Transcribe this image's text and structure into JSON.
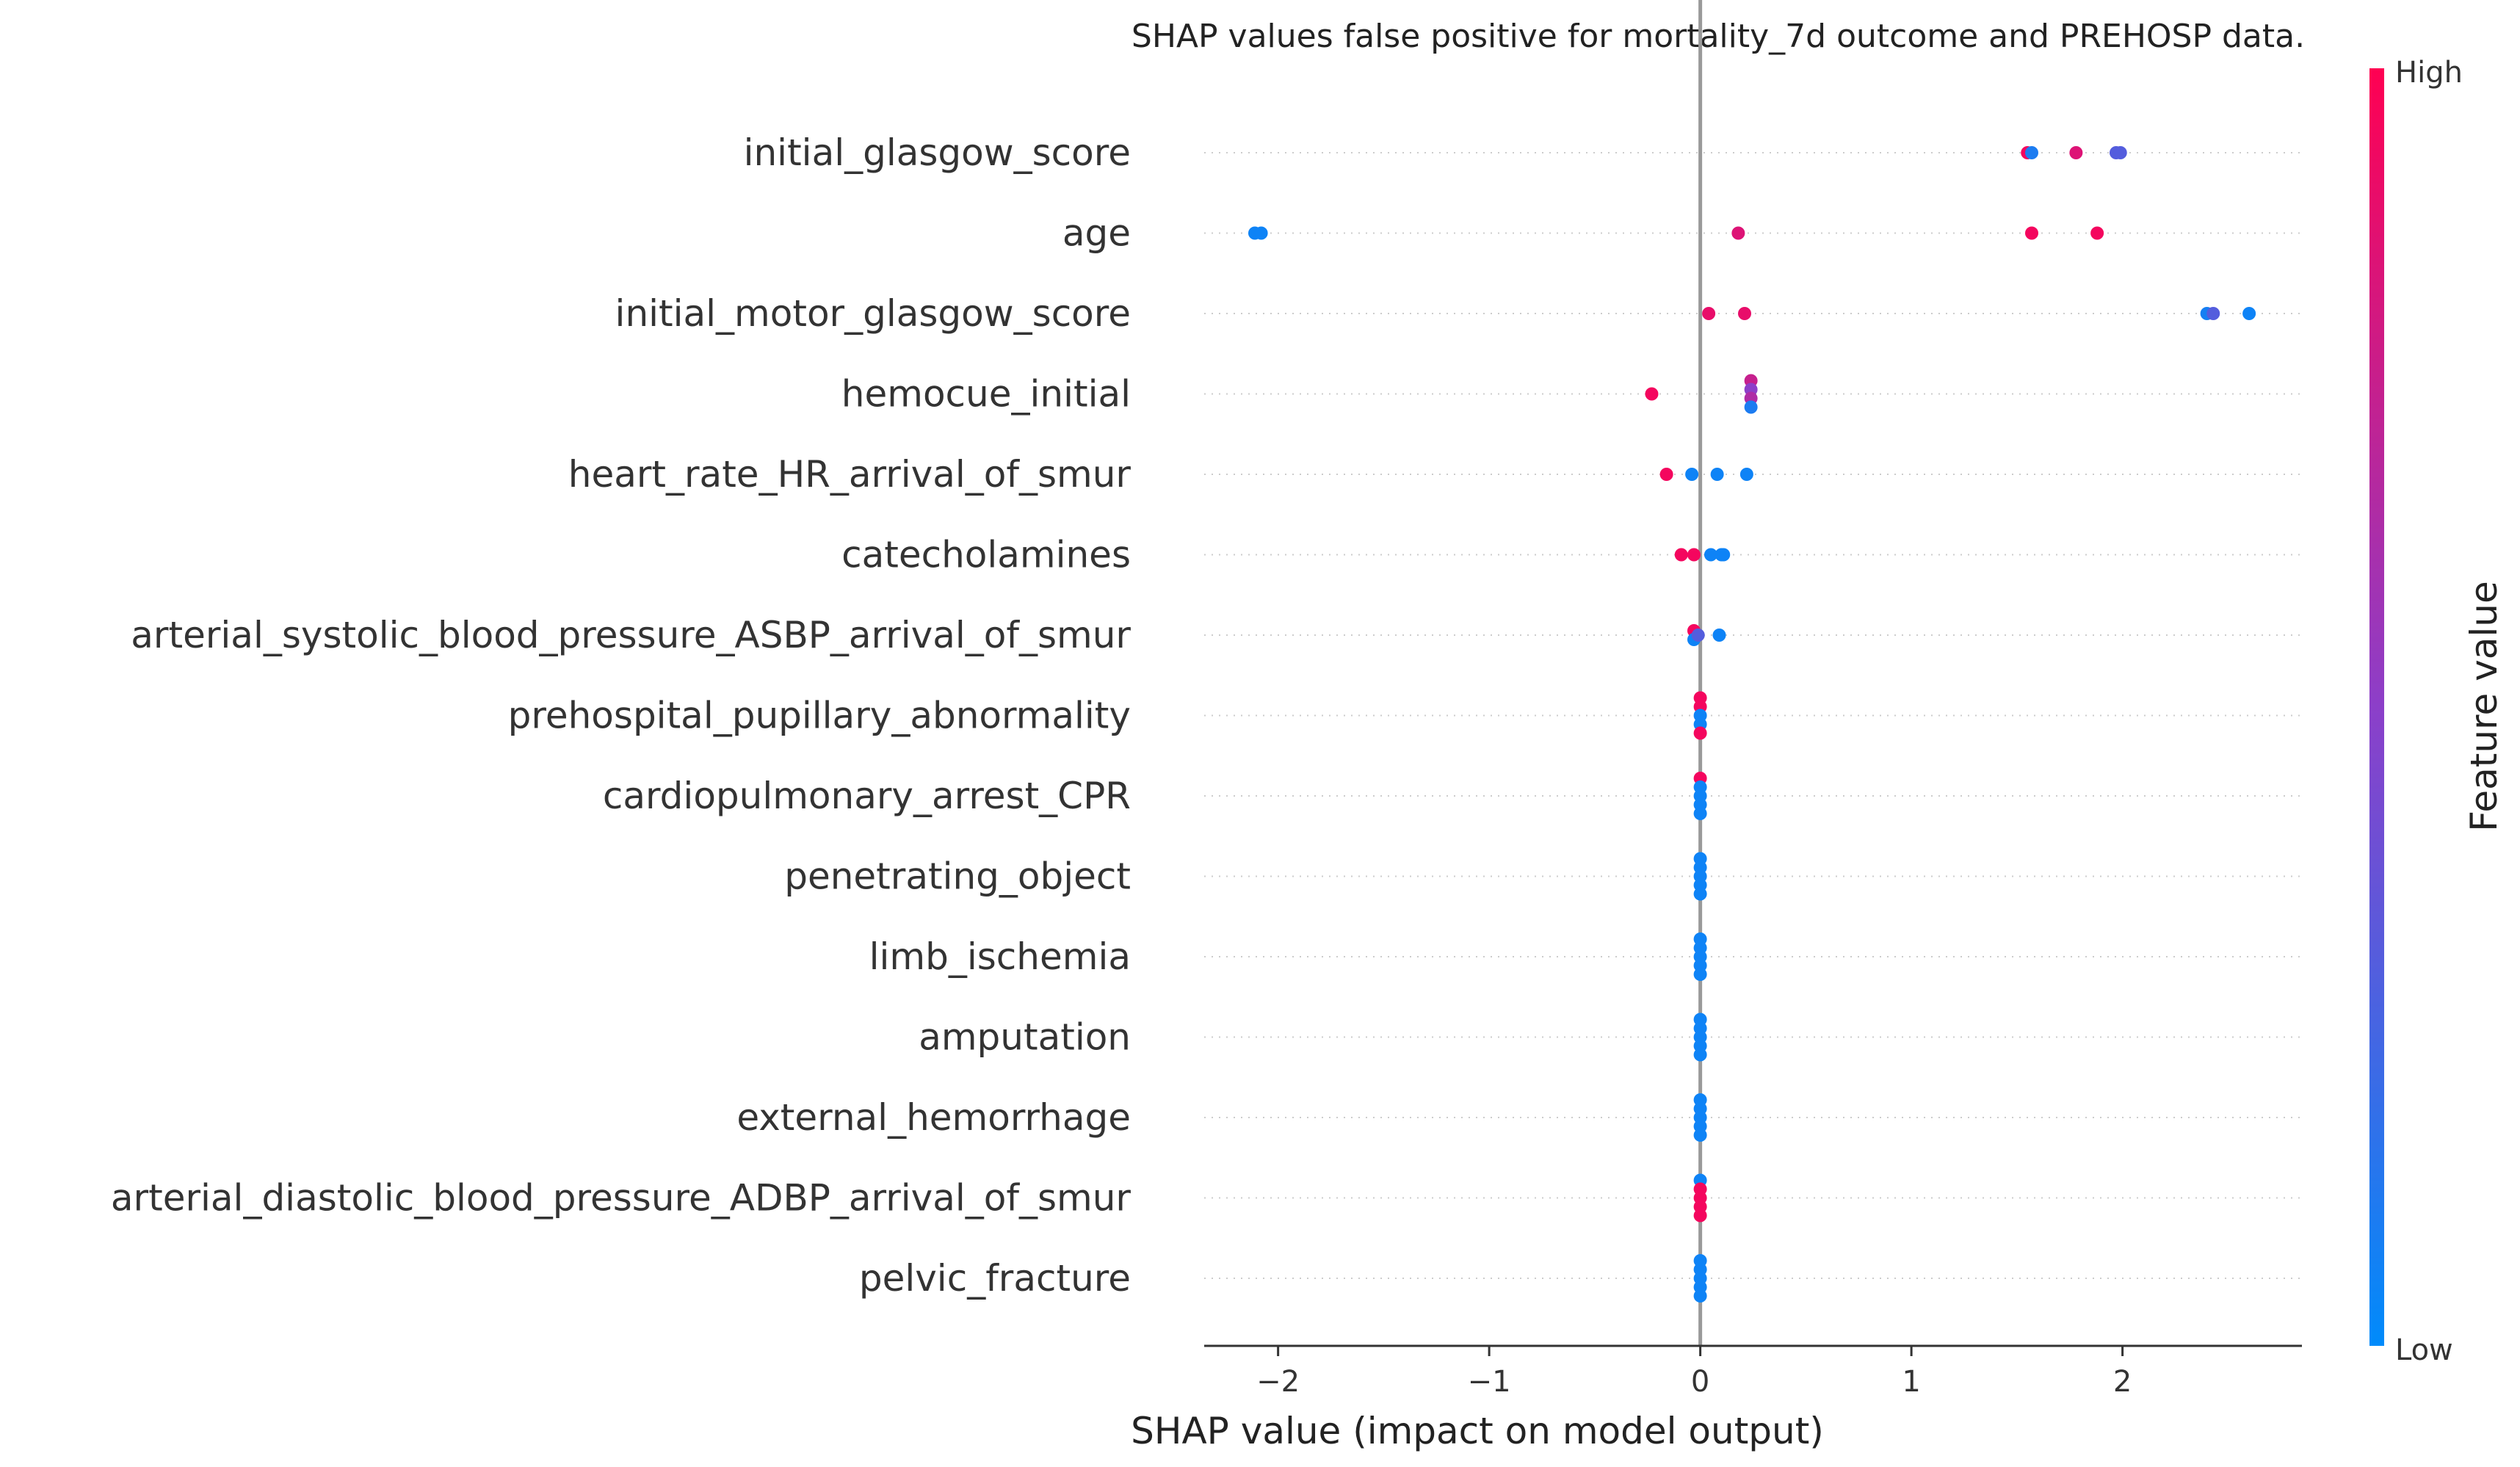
{
  "chart_data": {
    "type": "scatter",
    "title": "SHAP values false positive for mortality_7d outcome and PREHOSP data.",
    "xlabel": "SHAP value (impact on model output)",
    "ylabel": "",
    "xlim": [
      -2.35,
      2.85
    ],
    "xticks": [
      -2,
      -1,
      0,
      1,
      2
    ],
    "xtick_labels": [
      "−2",
      "−1",
      "0",
      "1",
      "2"
    ],
    "grid": false,
    "colorbar": {
      "label": "Feature value",
      "high_label": "High",
      "low_label": "Low",
      "low_color": "#008bfb",
      "high_color": "#ff0052"
    },
    "features": [
      {
        "name": "initial_glasgow_score",
        "points": [
          {
            "x": 1.55,
            "v": 0.95
          },
          {
            "x": 1.57,
            "v": 0.1
          },
          {
            "x": 1.78,
            "v": 0.85
          },
          {
            "x": 1.97,
            "v": 0.3
          },
          {
            "x": 1.99,
            "v": 0.3
          }
        ]
      },
      {
        "name": "age",
        "points": [
          {
            "x": -2.11,
            "v": 0.05
          },
          {
            "x": -2.08,
            "v": 0.05
          },
          {
            "x": 0.18,
            "v": 0.85
          },
          {
            "x": 1.57,
            "v": 0.95
          },
          {
            "x": 1.88,
            "v": 0.95
          }
        ]
      },
      {
        "name": "initial_motor_glasgow_score",
        "points": [
          {
            "x": 0.04,
            "v": 0.9
          },
          {
            "x": 0.21,
            "v": 0.9
          },
          {
            "x": 2.4,
            "v": 0.08
          },
          {
            "x": 2.43,
            "v": 0.3
          },
          {
            "x": 2.6,
            "v": 0.05
          }
        ]
      },
      {
        "name": "hemocue_initial",
        "points": [
          {
            "x": -0.23,
            "v": 0.95
          },
          {
            "x": 0.24,
            "v": 0.75
          },
          {
            "x": 0.24,
            "v": 0.5
          },
          {
            "x": 0.24,
            "v": 0.65
          },
          {
            "x": 0.24,
            "v": 0.1
          }
        ]
      },
      {
        "name": "heart_rate_HR_arrival_of_smur",
        "points": [
          {
            "x": -0.16,
            "v": 0.95
          },
          {
            "x": -0.04,
            "v": 0.05
          },
          {
            "x": 0.08,
            "v": 0.05
          },
          {
            "x": 0.22,
            "v": 0.05
          }
        ]
      },
      {
        "name": "catecholamines",
        "points": [
          {
            "x": -0.09,
            "v": 0.95
          },
          {
            "x": -0.03,
            "v": 0.95
          },
          {
            "x": 0.05,
            "v": 0.05
          },
          {
            "x": 0.1,
            "v": 0.05
          },
          {
            "x": 0.11,
            "v": 0.05
          }
        ]
      },
      {
        "name": "arterial_systolic_blood_pressure_ASBP_arrival_of_smur",
        "points": [
          {
            "x": -0.03,
            "v": 0.95
          },
          {
            "x": -0.03,
            "v": 0.05
          },
          {
            "x": -0.01,
            "v": 0.3
          },
          {
            "x": 0.09,
            "v": 0.05
          }
        ]
      },
      {
        "name": "prehospital_pupillary_abnormality",
        "points": [
          {
            "x": 0,
            "v": 0.95
          },
          {
            "x": 0,
            "v": 0.95
          },
          {
            "x": 0,
            "v": 0.05
          },
          {
            "x": 0,
            "v": 0.05
          },
          {
            "x": 0,
            "v": 0.95
          }
        ]
      },
      {
        "name": "cardiopulmonary_arrest_CPR",
        "points": [
          {
            "x": 0,
            "v": 0.95
          },
          {
            "x": 0,
            "v": 0.05
          },
          {
            "x": 0,
            "v": 0.05
          },
          {
            "x": 0,
            "v": 0.05
          },
          {
            "x": 0,
            "v": 0.05
          }
        ]
      },
      {
        "name": "penetrating_object",
        "points": [
          {
            "x": 0,
            "v": 0.05
          },
          {
            "x": 0,
            "v": 0.05
          },
          {
            "x": 0,
            "v": 0.05
          },
          {
            "x": 0,
            "v": 0.05
          },
          {
            "x": 0,
            "v": 0.05
          }
        ]
      },
      {
        "name": "limb_ischemia",
        "points": [
          {
            "x": 0,
            "v": 0.05
          },
          {
            "x": 0,
            "v": 0.05
          },
          {
            "x": 0,
            "v": 0.05
          },
          {
            "x": 0,
            "v": 0.05
          },
          {
            "x": 0,
            "v": 0.05
          }
        ]
      },
      {
        "name": "amputation",
        "points": [
          {
            "x": 0,
            "v": 0.05
          },
          {
            "x": 0,
            "v": 0.05
          },
          {
            "x": 0,
            "v": 0.05
          },
          {
            "x": 0,
            "v": 0.05
          },
          {
            "x": 0,
            "v": 0.05
          }
        ]
      },
      {
        "name": "external_hemorrhage",
        "points": [
          {
            "x": 0,
            "v": 0.05
          },
          {
            "x": 0,
            "v": 0.05
          },
          {
            "x": 0,
            "v": 0.05
          },
          {
            "x": 0,
            "v": 0.05
          },
          {
            "x": 0,
            "v": 0.05
          }
        ]
      },
      {
        "name": "arterial_diastolic_blood_pressure_ADBP_arrival_of_smur",
        "points": [
          {
            "x": 0,
            "v": 0.05
          },
          {
            "x": 0,
            "v": 0.95
          },
          {
            "x": 0,
            "v": 0.95
          },
          {
            "x": 0,
            "v": 0.95
          },
          {
            "x": 0,
            "v": 0.95
          }
        ]
      },
      {
        "name": "pelvic_fracture",
        "points": [
          {
            "x": 0,
            "v": 0.05
          },
          {
            "x": 0,
            "v": 0.05
          },
          {
            "x": 0,
            "v": 0.05
          },
          {
            "x": 0,
            "v": 0.05
          },
          {
            "x": 0,
            "v": 0.05
          }
        ]
      }
    ]
  }
}
